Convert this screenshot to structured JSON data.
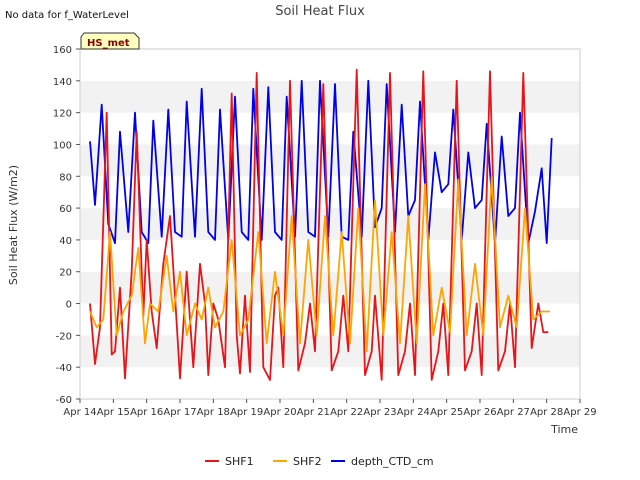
{
  "chart_data": {
    "type": "line",
    "title": "Soil Heat Flux",
    "xlabel": "Time",
    "ylabel": "Soil Heat Flux (W/m2)",
    "ylim": [
      -60,
      160
    ],
    "xlim": [
      14,
      29
    ],
    "yticks": [
      -60,
      -40,
      -20,
      0,
      20,
      40,
      60,
      80,
      100,
      120,
      140,
      160
    ],
    "xticks": [
      {
        "pos": 14,
        "label": "Apr 14"
      },
      {
        "pos": 15,
        "label": "Apr 15"
      },
      {
        "pos": 16,
        "label": "Apr 16"
      },
      {
        "pos": 17,
        "label": "Apr 17"
      },
      {
        "pos": 18,
        "label": "Apr 18"
      },
      {
        "pos": 19,
        "label": "Apr 19"
      },
      {
        "pos": 20,
        "label": "Apr 20"
      },
      {
        "pos": 21,
        "label": "Apr 21"
      },
      {
        "pos": 22,
        "label": "Apr 22"
      },
      {
        "pos": 23,
        "label": "Apr 23"
      },
      {
        "pos": 24,
        "label": "Apr 24"
      },
      {
        "pos": 25,
        "label": "Apr 25"
      },
      {
        "pos": 26,
        "label": "Apr 26"
      },
      {
        "pos": 27,
        "label": "Apr 27"
      },
      {
        "pos": 28,
        "label": "Apr 28"
      },
      {
        "pos": 29,
        "label": "Apr 29"
      }
    ],
    "no_data_note": "No data for f_WaterLevel",
    "badge": "HS_met",
    "grid": "horizontal bands",
    "legend_position": "bottom-center",
    "series": [
      {
        "name": "SHF1",
        "color": "#e8141a",
        "x": [
          14.3,
          14.45,
          14.6,
          14.8,
          14.95,
          15.05,
          15.2,
          15.35,
          15.55,
          15.7,
          15.9,
          16.0,
          16.15,
          16.3,
          16.5,
          16.7,
          16.85,
          17.0,
          17.2,
          17.4,
          17.6,
          17.75,
          17.85,
          18.0,
          18.15,
          18.35,
          18.55,
          18.7,
          18.8,
          18.95,
          19.1,
          19.3,
          19.5,
          19.7,
          19.85,
          19.95,
          20.1,
          20.3,
          20.55,
          20.75,
          20.9,
          21.05,
          21.3,
          21.55,
          21.75,
          21.9,
          22.05,
          22.3,
          22.55,
          22.75,
          22.85,
          23.05,
          23.3,
          23.55,
          23.75,
          23.9,
          24.05,
          24.3,
          24.55,
          24.75,
          24.9,
          25.05,
          25.3,
          25.55,
          25.75,
          25.9,
          26.05,
          26.3,
          26.55,
          26.75,
          26.9,
          27.05,
          27.3,
          27.55,
          27.75,
          27.9,
          28.05
        ],
        "values": [
          0,
          -38,
          -15,
          120,
          -32,
          -30,
          10,
          -47,
          20,
          108,
          -8,
          40,
          -5,
          -28,
          25,
          55,
          5,
          -47,
          20,
          -40,
          25,
          0,
          -45,
          0,
          -10,
          -40,
          132,
          -20,
          -44,
          5,
          -43,
          145,
          -40,
          -48,
          5,
          10,
          -40,
          140,
          -42,
          -25,
          0,
          -30,
          138,
          -42,
          -30,
          5,
          -30,
          147,
          -45,
          -30,
          5,
          -48,
          145,
          -45,
          -30,
          0,
          -45,
          146,
          -48,
          -30,
          0,
          -45,
          140,
          -42,
          -30,
          0,
          -45,
          146,
          -42,
          -30,
          0,
          -40,
          145,
          -28,
          0,
          -18,
          -18
        ]
      },
      {
        "name": "SHF2",
        "color": "#ffa500",
        "x": [
          14.3,
          14.5,
          14.7,
          14.9,
          15.1,
          15.3,
          15.55,
          15.75,
          15.95,
          16.1,
          16.35,
          16.6,
          16.8,
          17.0,
          17.2,
          17.45,
          17.65,
          17.85,
          18.05,
          18.3,
          18.55,
          18.8,
          19.05,
          19.35,
          19.6,
          19.85,
          20.1,
          20.35,
          20.6,
          20.85,
          21.1,
          21.35,
          21.6,
          21.85,
          22.1,
          22.35,
          22.6,
          22.85,
          23.1,
          23.35,
          23.6,
          23.85,
          24.1,
          24.35,
          24.6,
          24.85,
          25.1,
          25.35,
          25.6,
          25.85,
          26.1,
          26.35,
          26.6,
          26.85,
          27.1,
          27.35,
          27.6,
          27.85,
          28.0,
          28.1
        ],
        "values": [
          -5,
          -15,
          -10,
          45,
          -20,
          -5,
          5,
          35,
          -25,
          0,
          -5,
          30,
          -5,
          20,
          -20,
          0,
          -10,
          10,
          -15,
          -5,
          40,
          -20,
          -10,
          45,
          -25,
          20,
          -20,
          55,
          -25,
          40,
          -20,
          55,
          -20,
          45,
          -25,
          60,
          -30,
          65,
          -20,
          45,
          -25,
          55,
          -25,
          75,
          -20,
          10,
          -18,
          78,
          -20,
          25,
          -20,
          80,
          -15,
          5,
          -15,
          60,
          -10,
          -5,
          -5,
          -5
        ]
      },
      {
        "name": "depth_CTD_cm",
        "color": "#0000ee",
        "x": [
          14.3,
          14.45,
          14.65,
          14.85,
          15.05,
          15.2,
          15.45,
          15.65,
          15.85,
          16.05,
          16.2,
          16.45,
          16.65,
          16.85,
          17.05,
          17.2,
          17.45,
          17.65,
          17.85,
          18.05,
          18.2,
          18.45,
          18.65,
          18.85,
          19.05,
          19.2,
          19.45,
          19.65,
          19.85,
          20.05,
          20.2,
          20.45,
          20.65,
          20.85,
          21.05,
          21.2,
          21.45,
          21.65,
          21.85,
          22.05,
          22.2,
          22.45,
          22.65,
          22.85,
          23.05,
          23.2,
          23.45,
          23.65,
          23.85,
          24.05,
          24.2,
          24.45,
          24.65,
          24.85,
          25.05,
          25.2,
          25.45,
          25.65,
          25.85,
          26.05,
          26.2,
          26.45,
          26.65,
          26.85,
          27.05,
          27.2,
          27.45,
          27.65,
          27.85,
          28.0,
          28.15
        ],
        "values": [
          102,
          62,
          125,
          50,
          38,
          108,
          45,
          120,
          45,
          38,
          115,
          42,
          122,
          45,
          42,
          127,
          42,
          135,
          45,
          40,
          122,
          40,
          130,
          45,
          40,
          135,
          40,
          136,
          45,
          40,
          130,
          42,
          140,
          45,
          42,
          140,
          42,
          138,
          42,
          40,
          108,
          42,
          140,
          48,
          60,
          138,
          45,
          125,
          55,
          65,
          127,
          40,
          95,
          70,
          75,
          122,
          40,
          95,
          60,
          65,
          113,
          38,
          105,
          55,
          60,
          120,
          38,
          58,
          85,
          38,
          104
        ]
      }
    ]
  }
}
